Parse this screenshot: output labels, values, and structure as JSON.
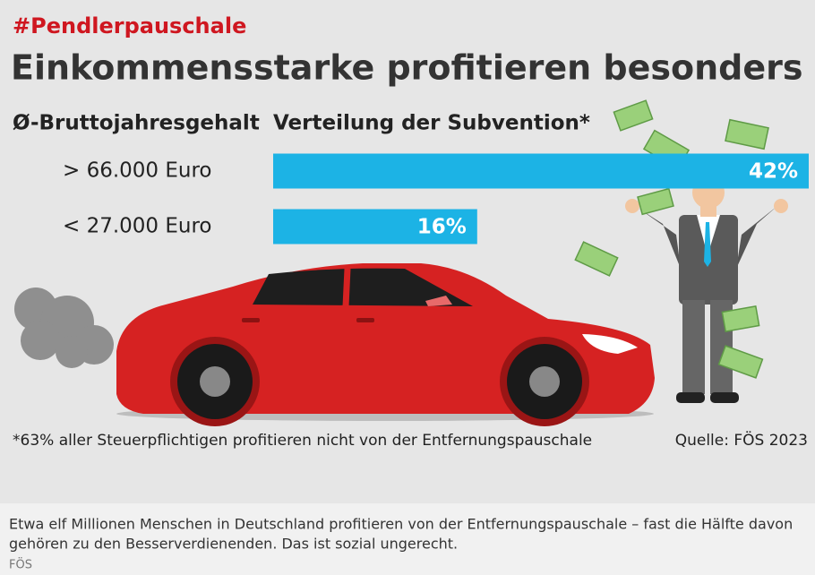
{
  "chart_data": {
    "type": "bar",
    "hashtag": "#Pendlerpauschale",
    "title": "Einkommensstarke profitieren besonders",
    "category_header": "Ø-Bruttojahresgehalt",
    "value_header": "Verteilung der Subvention*",
    "categories": [
      "> 66.000 Euro",
      "< 27.000 Euro"
    ],
    "values": [
      42,
      16
    ],
    "value_labels": [
      "42%",
      "16%"
    ],
    "color": "#1cb3e5",
    "footnote": "*63% aller Steuerpflichtigen profitieren nicht von der Entfernungspauschale",
    "source": "Quelle: FÖS 2023"
  },
  "caption": {
    "lines": [
      "Etwa elf Millionen Menschen in Deutschland profitieren von der Entfernungspauschale – fast die Hälfte davon",
      "gehören zu den Besserverdienenden. Das ist sozial ungerecht."
    ],
    "credit": "FÖS"
  }
}
